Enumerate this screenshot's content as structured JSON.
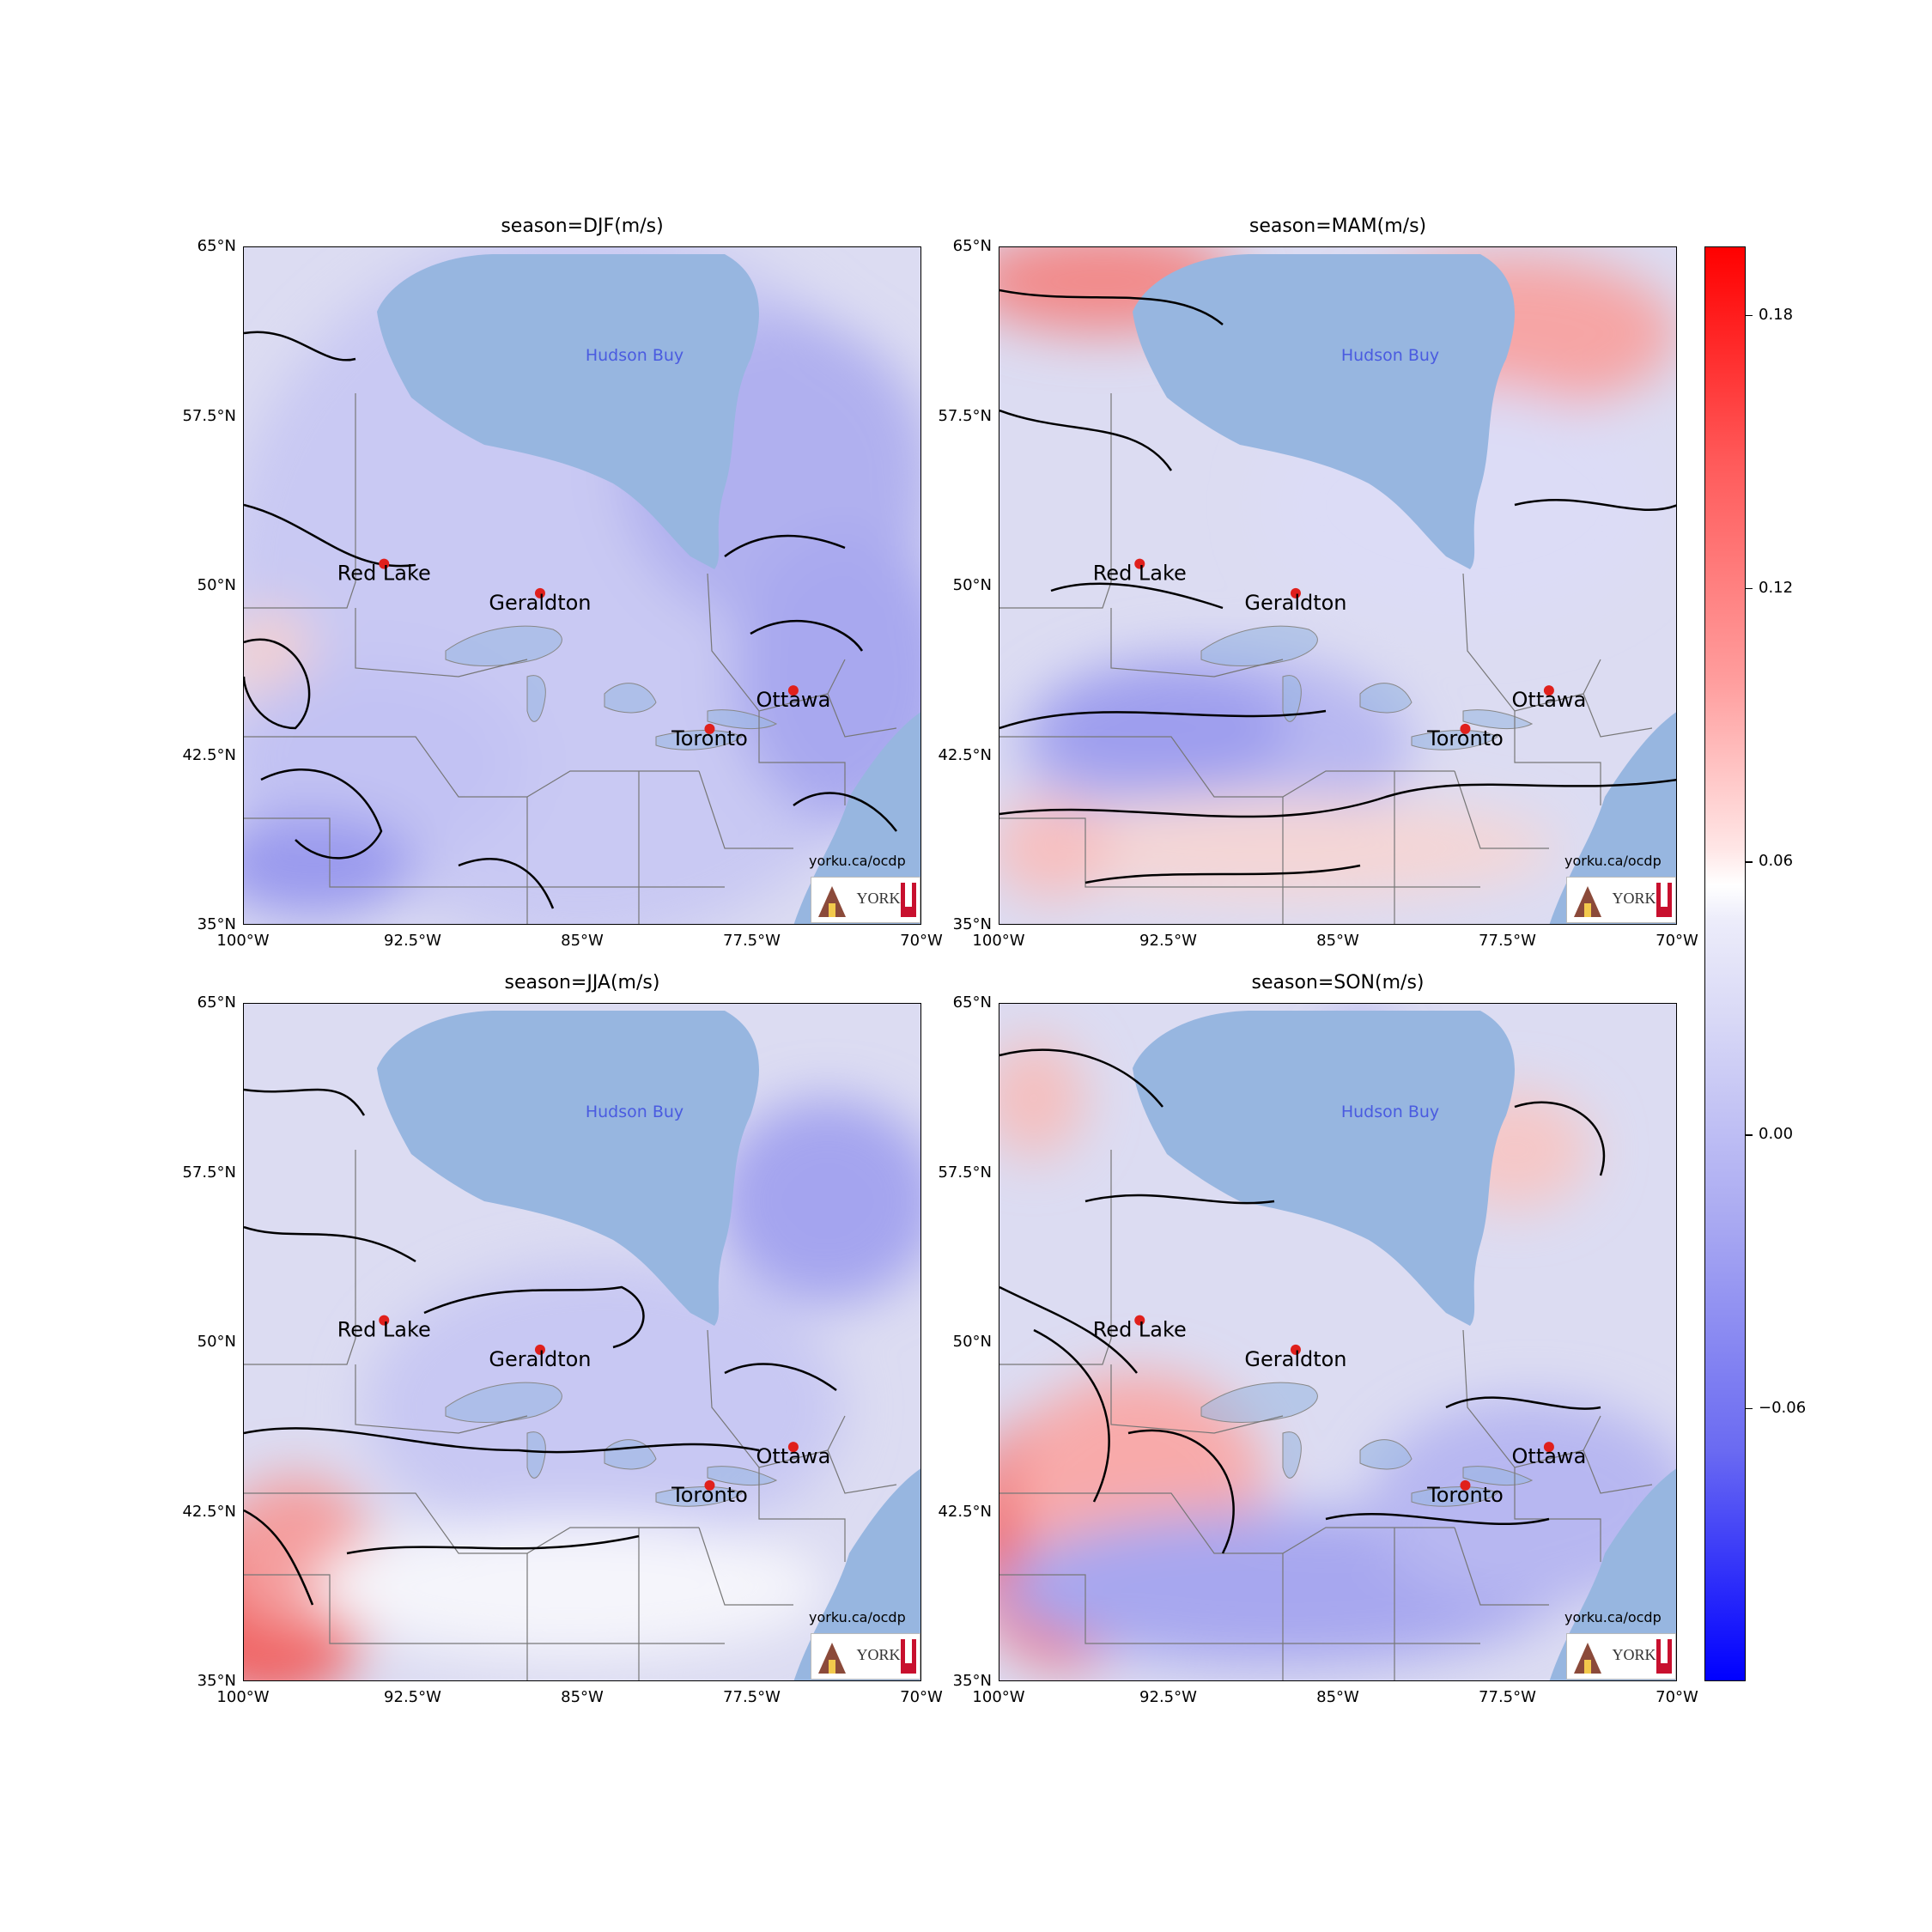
{
  "panels": [
    {
      "title": "season=DJF(m/s)",
      "id": "djf"
    },
    {
      "title": "season=MAM(m/s)",
      "id": "mam"
    },
    {
      "title": "season=JJA(m/s)",
      "id": "jja"
    },
    {
      "title": "season=SON(m/s)",
      "id": "son"
    }
  ],
  "map": {
    "lat_ticks": [
      "65°N",
      "57.5°N",
      "50°N",
      "42.5°N",
      "35°N"
    ],
    "lon_ticks": [
      "100°W",
      "92.5°W",
      "85°W",
      "77.5°W",
      "70°W"
    ],
    "extent": {
      "lon": [
        -100,
        -70
      ],
      "lat": [
        35,
        65
      ]
    },
    "water_label": "Hudson Buy",
    "cities": [
      {
        "name": "Red Lake",
        "lon": -93.8,
        "lat": 51.0
      },
      {
        "name": "Geraldton",
        "lon": -86.9,
        "lat": 49.7
      },
      {
        "name": "Ottawa",
        "lon": -75.7,
        "lat": 45.4
      },
      {
        "name": "Toronto",
        "lon": -79.4,
        "lat": 43.7
      }
    ],
    "credit": "yorku.ca/ocdp",
    "logo_text": "YORK"
  },
  "colorbar": {
    "ticks": [
      "0.18",
      "0.12",
      "0.06",
      "0.00",
      "−0.06"
    ],
    "values": [
      0.18,
      0.12,
      0.06,
      0.0,
      -0.06
    ],
    "range": [
      -0.12,
      0.195
    ],
    "colors": {
      "max": "#ff0000",
      "mid": "#ffffff",
      "min": "#0000ff"
    }
  },
  "colors": {
    "water": "#97b6e0",
    "contour": "#000000",
    "city": "#e0201c",
    "water_label": "#4a5be0"
  }
}
